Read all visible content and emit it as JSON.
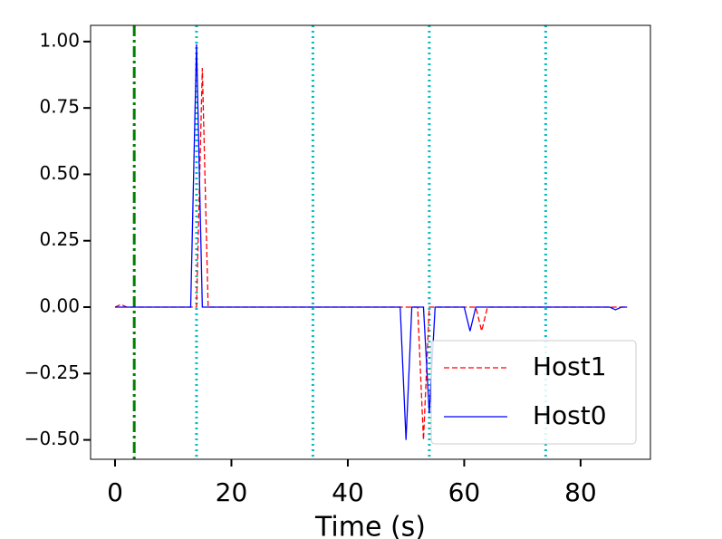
{
  "chart_data": {
    "type": "line",
    "xlabel": "Time (s)",
    "xlim": [
      -4.2,
      92
    ],
    "xticks": [
      0,
      20,
      40,
      60,
      80
    ],
    "ylim": [
      -0.573,
      1.061
    ],
    "yticks": [
      {
        "value": -0.5,
        "label": "−0.50"
      },
      {
        "value": -0.25,
        "label": "−0.25"
      },
      {
        "value": 0,
        "label": "0.00"
      },
      {
        "value": 0.25,
        "label": "0.25"
      },
      {
        "value": 0.5,
        "label": "0.50"
      },
      {
        "value": 0.75,
        "label": "0.75"
      },
      {
        "value": 1,
        "label": "1.00"
      }
    ],
    "legend": "lower right",
    "vlines": [
      {
        "x": 3.3,
        "color": "#008000",
        "style": "dashdot"
      },
      {
        "x": 14,
        "color": "#00bfbf",
        "style": "dotted"
      },
      {
        "x": 34,
        "color": "#00bfbf",
        "style": "dotted"
      },
      {
        "x": 54,
        "color": "#00bfbf",
        "style": "dotted"
      },
      {
        "x": 74,
        "color": "#00bfbf",
        "style": "dotted"
      }
    ],
    "series": [
      {
        "name": "Host1",
        "color": "#ff0000",
        "style": "dashed",
        "x": [
          0,
          1,
          2,
          3,
          14,
          15,
          16,
          52,
          53,
          54,
          55,
          62,
          63,
          64,
          88
        ],
        "values": [
          0,
          0.01,
          0,
          0,
          0,
          0.9,
          0,
          0,
          -0.5,
          0,
          0,
          0,
          -0.09,
          0,
          0
        ]
      },
      {
        "name": "Host0",
        "color": "#0000ff",
        "style": "solid",
        "x": [
          0,
          13,
          14,
          15,
          49,
          50,
          51,
          53,
          54,
          55,
          60,
          61,
          62,
          85,
          86,
          87,
          88
        ],
        "values": [
          0,
          0,
          0.99,
          0,
          0,
          -0.5,
          0,
          0,
          -0.4,
          0,
          0,
          -0.09,
          0,
          0,
          -0.01,
          0,
          0
        ]
      }
    ]
  }
}
